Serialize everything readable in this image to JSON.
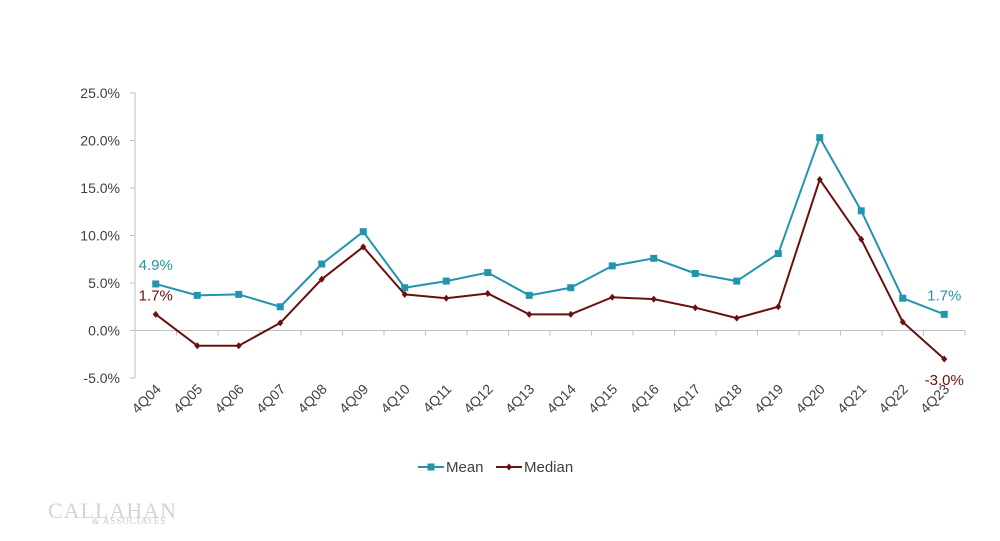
{
  "chart_data": {
    "type": "line",
    "title": "",
    "xlabel": "",
    "ylabel": "",
    "categories": [
      "4Q04",
      "4Q05",
      "4Q06",
      "4Q07",
      "4Q08",
      "4Q09",
      "4Q10",
      "4Q11",
      "4Q12",
      "4Q13",
      "4Q14",
      "4Q15",
      "4Q16",
      "4Q17",
      "4Q18",
      "4Q19",
      "4Q20",
      "4Q21",
      "4Q22",
      "4Q23"
    ],
    "ylim": [
      -5,
      25
    ],
    "yticks": [
      -5,
      0,
      5,
      10,
      15,
      20,
      25
    ],
    "ytick_labels": [
      "-5.0%",
      "0.0%",
      "5.0%",
      "10.0%",
      "15.0%",
      "20.0%",
      "25.0%"
    ],
    "legend_position": "bottom",
    "series": [
      {
        "name": "Mean",
        "color": "#2394ad",
        "marker": "square",
        "values": [
          4.9,
          3.7,
          3.8,
          2.5,
          7.0,
          10.4,
          4.5,
          5.2,
          6.1,
          3.7,
          4.5,
          6.8,
          7.6,
          6.0,
          5.2,
          8.1,
          20.3,
          12.6,
          3.4,
          1.7
        ]
      },
      {
        "name": "Median",
        "color": "#6b0f0f",
        "marker": "diamond",
        "values": [
          1.7,
          -1.6,
          -1.6,
          0.8,
          5.4,
          8.8,
          3.8,
          3.4,
          3.9,
          1.7,
          1.7,
          3.5,
          3.3,
          2.4,
          1.3,
          2.5,
          15.9,
          9.6,
          0.9,
          -3.0
        ]
      }
    ],
    "annotations": [
      {
        "series": "Mean",
        "index": 0,
        "text": "4.9%",
        "placement": "above"
      },
      {
        "series": "Median",
        "index": 0,
        "text": "1.7%",
        "placement": "above"
      },
      {
        "series": "Mean",
        "index": 19,
        "text": "1.7%",
        "placement": "above"
      },
      {
        "series": "Median",
        "index": 19,
        "text": "-3.0%",
        "placement": "below"
      }
    ]
  },
  "logo": {
    "name": "CALLAHAN",
    "sub": "& ASSOCIATES"
  }
}
